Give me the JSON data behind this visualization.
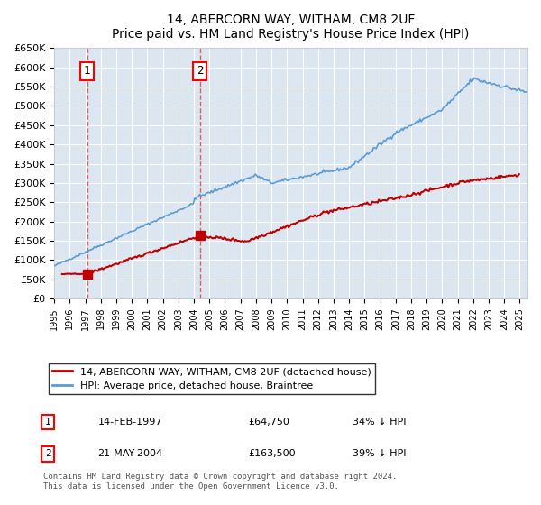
{
  "title": "14, ABERCORN WAY, WITHAM, CM8 2UF",
  "subtitle": "Price paid vs. HM Land Registry's House Price Index (HPI)",
  "xlabel": "",
  "ylabel": "",
  "ylim": [
    0,
    650000
  ],
  "xlim_start": 1995.0,
  "xlim_end": 2025.5,
  "ytick_labels": [
    "£0",
    "£50K",
    "£100K",
    "£150K",
    "£200K",
    "£250K",
    "£300K",
    "£350K",
    "£400K",
    "£450K",
    "£500K",
    "£550K",
    "£600K",
    "£650K"
  ],
  "ytick_values": [
    0,
    50000,
    100000,
    150000,
    200000,
    250000,
    300000,
    350000,
    400000,
    450000,
    500000,
    550000,
    600000,
    650000
  ],
  "sale1_year": 1997.12,
  "sale1_price": 64750,
  "sale2_year": 2004.38,
  "sale2_price": 163500,
  "hpi_color": "#5b9bd5",
  "price_color": "#c00000",
  "dashed_line_color": "#e06060",
  "background_color": "#dce6f1",
  "legend_label_red": "14, ABERCORN WAY, WITHAM, CM8 2UF (detached house)",
  "legend_label_blue": "HPI: Average price, detached house, Braintree",
  "annotation1_label": "1",
  "annotation2_label": "2",
  "table_row1": [
    "1",
    "14-FEB-1997",
    "£64,750",
    "34% ↓ HPI"
  ],
  "table_row2": [
    "2",
    "21-MAY-2004",
    "£163,500",
    "39% ↓ HPI"
  ],
  "footer": "Contains HM Land Registry data © Crown copyright and database right 2024.\nThis data is licensed under the Open Government Licence v3.0."
}
